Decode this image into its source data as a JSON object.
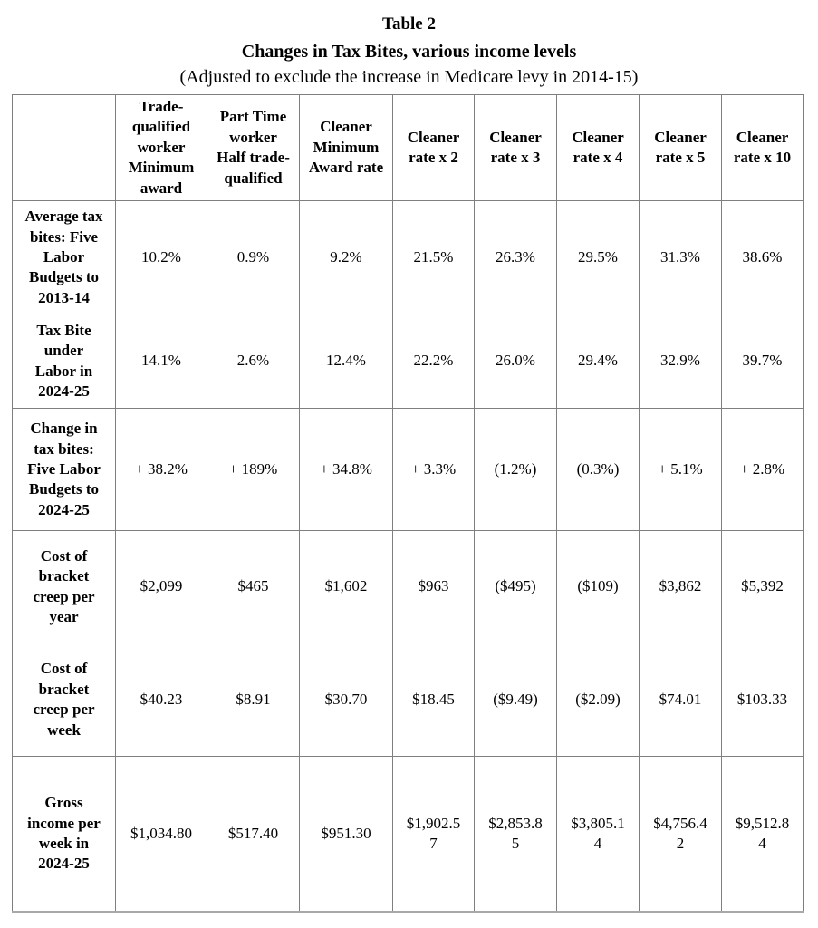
{
  "title": {
    "line1": "Table 2",
    "line2": "Changes in Tax Bites, various income levels",
    "line3": "(Adjusted to exclude the increase in Medicare levy in 2014-15)"
  },
  "table": {
    "column_headers": [
      "",
      "Trade-qualified worker Minimum award",
      "Part Time worker Half trade-qualified",
      "Cleaner Minimum Award rate",
      "Cleaner rate x 2",
      "Cleaner rate x 3",
      "Cleaner rate x 4",
      "Cleaner rate x 5",
      "Cleaner rate x 10"
    ],
    "rows": [
      {
        "label": "Average tax bites: Five Labor Budgets to 2013-14",
        "values": [
          "10.2%",
          "0.9%",
          "9.2%",
          "21.5%",
          "26.3%",
          "29.5%",
          "31.3%",
          "38.6%"
        ]
      },
      {
        "label": "Tax Bite under Labor in 2024-25",
        "values": [
          "14.1%",
          "2.6%",
          "12.4%",
          "22.2%",
          "26.0%",
          "29.4%",
          "32.9%",
          "39.7%"
        ]
      },
      {
        "label": "Change in tax bites: Five Labor Budgets to 2024-25",
        "values": [
          "+ 38.2%",
          "+ 189%",
          "+ 34.8%",
          "+ 3.3%",
          "(1.2%)",
          "(0.3%)",
          "+ 5.1%",
          "+ 2.8%"
        ]
      },
      {
        "label": "Cost of bracket creep per year",
        "values": [
          "$2,099",
          "$465",
          "$1,602",
          "$963",
          "($495)",
          "($109)",
          "$3,862",
          "$5,392"
        ]
      },
      {
        "label": "Cost of bracket creep per week",
        "values": [
          "$40.23",
          "$8.91",
          "$30.70",
          "$18.45",
          "($9.49)",
          "($2.09)",
          "$74.01",
          "$103.33"
        ]
      },
      {
        "label": "Gross income per week in 2024-25",
        "values": [
          "$1,034.80",
          "$517.40",
          "$951.30",
          "$1,902.57",
          "$2,853.85",
          "$3,805.14",
          "$4,756.42",
          "$9,512.84"
        ]
      }
    ]
  },
  "colors": {
    "grid_line": "#7f7f7f",
    "text": "#000000",
    "background": "#ffffff"
  }
}
